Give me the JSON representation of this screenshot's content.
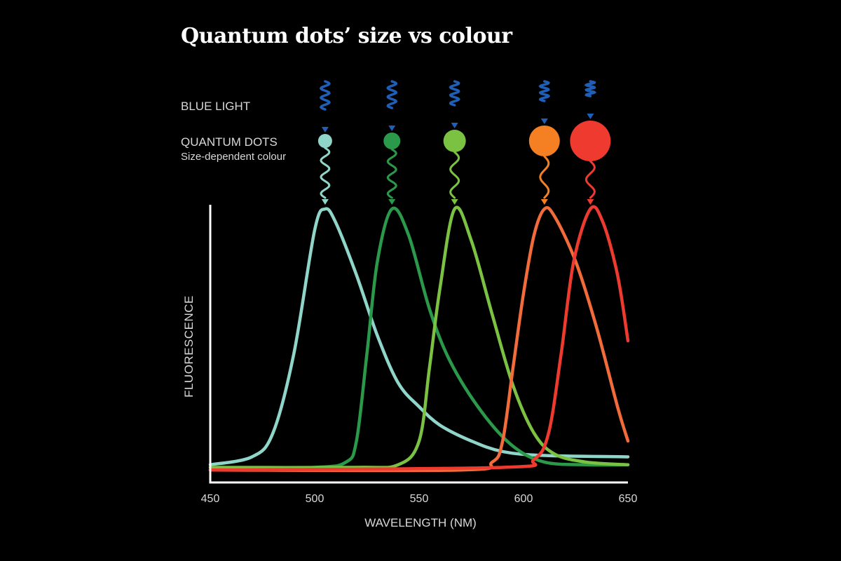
{
  "title": "Quantum dots’ size vs colour",
  "labels": {
    "blue_light": "BLUE LIGHT",
    "quantum_dots": "QUANTUM DOTS",
    "quantum_dots_sub": "Size-dependent colour"
  },
  "colors": {
    "background": "#000000",
    "incoming_light": "#1f5fb8",
    "axis": "#ffffff"
  },
  "dots": [
    {
      "name": "dot-1",
      "color": "#8fd5c9",
      "radius": 10,
      "peak_nm": 505
    },
    {
      "name": "dot-2",
      "color": "#2a9a4a",
      "radius": 12,
      "peak_nm": 537
    },
    {
      "name": "dot-3",
      "color": "#7cc242",
      "radius": 16,
      "peak_nm": 567
    },
    {
      "name": "dot-4",
      "color": "#f58023",
      "radius": 22,
      "peak_nm": 610
    },
    {
      "name": "dot-5",
      "color": "#ee3a2f",
      "radius": 29,
      "peak_nm": 632
    }
  ],
  "chart_data": {
    "type": "line",
    "title": "Quantum dots’ size vs colour",
    "xlabel": "WAVELENGTH (NM)",
    "ylabel": "FLUORESCENCE",
    "xlim": [
      450,
      650
    ],
    "ylim": [
      0,
      1
    ],
    "x_ticks": [
      450,
      500,
      550,
      600,
      650
    ],
    "grid": false,
    "legend": "none (dots above curves indicate colour)",
    "series": [
      {
        "name": "Cyan quantum dot (smallest)",
        "color": "#8fd5c9",
        "peak_nm": 505,
        "peak_value": 1.0,
        "points": [
          [
            450,
            0.03
          ],
          [
            470,
            0.06
          ],
          [
            480,
            0.15
          ],
          [
            490,
            0.45
          ],
          [
            500,
            0.92
          ],
          [
            505,
            1.0
          ],
          [
            510,
            0.95
          ],
          [
            520,
            0.75
          ],
          [
            530,
            0.52
          ],
          [
            540,
            0.34
          ],
          [
            550,
            0.25
          ],
          [
            560,
            0.18
          ],
          [
            575,
            0.12
          ],
          [
            590,
            0.08
          ],
          [
            610,
            0.065
          ],
          [
            650,
            0.06
          ]
        ]
      },
      {
        "name": "Dark green quantum dot",
        "color": "#2a9a4a",
        "peak_nm": 537,
        "peak_value": 1.0,
        "points": [
          [
            450,
            0.01
          ],
          [
            500,
            0.02
          ],
          [
            515,
            0.04
          ],
          [
            520,
            0.12
          ],
          [
            525,
            0.45
          ],
          [
            530,
            0.8
          ],
          [
            537,
            1.0
          ],
          [
            545,
            0.9
          ],
          [
            555,
            0.62
          ],
          [
            565,
            0.42
          ],
          [
            580,
            0.23
          ],
          [
            595,
            0.1
          ],
          [
            610,
            0.04
          ],
          [
            630,
            0.03
          ],
          [
            650,
            0.03
          ]
        ]
      },
      {
        "name": "Light green quantum dot",
        "color": "#7cc242",
        "peak_nm": 567,
        "peak_value": 1.0,
        "points": [
          [
            450,
            0.02
          ],
          [
            520,
            0.02
          ],
          [
            540,
            0.03
          ],
          [
            550,
            0.12
          ],
          [
            555,
            0.4
          ],
          [
            560,
            0.7
          ],
          [
            567,
            1.0
          ],
          [
            575,
            0.88
          ],
          [
            585,
            0.6
          ],
          [
            595,
            0.33
          ],
          [
            605,
            0.15
          ],
          [
            615,
            0.07
          ],
          [
            630,
            0.04
          ],
          [
            650,
            0.03
          ]
        ]
      },
      {
        "name": "Orange quantum dot",
        "color": "#f26b3a",
        "peak_nm": 610,
        "peak_value": 1.0,
        "points": [
          [
            450,
            0.01
          ],
          [
            570,
            0.01
          ],
          [
            585,
            0.04
          ],
          [
            590,
            0.12
          ],
          [
            595,
            0.4
          ],
          [
            600,
            0.68
          ],
          [
            605,
            0.9
          ],
          [
            610,
            1.0
          ],
          [
            615,
            0.97
          ],
          [
            625,
            0.8
          ],
          [
            635,
            0.55
          ],
          [
            645,
            0.25
          ],
          [
            650,
            0.12
          ]
        ]
      },
      {
        "name": "Red quantum dot (largest)",
        "color": "#ee3a2f",
        "peak_nm": 632,
        "peak_value": 1.0,
        "points": [
          [
            450,
            0.01
          ],
          [
            590,
            0.02
          ],
          [
            605,
            0.05
          ],
          [
            612,
            0.15
          ],
          [
            618,
            0.45
          ],
          [
            624,
            0.8
          ],
          [
            632,
            1.0
          ],
          [
            638,
            0.95
          ],
          [
            645,
            0.75
          ],
          [
            650,
            0.5
          ]
        ]
      }
    ]
  }
}
